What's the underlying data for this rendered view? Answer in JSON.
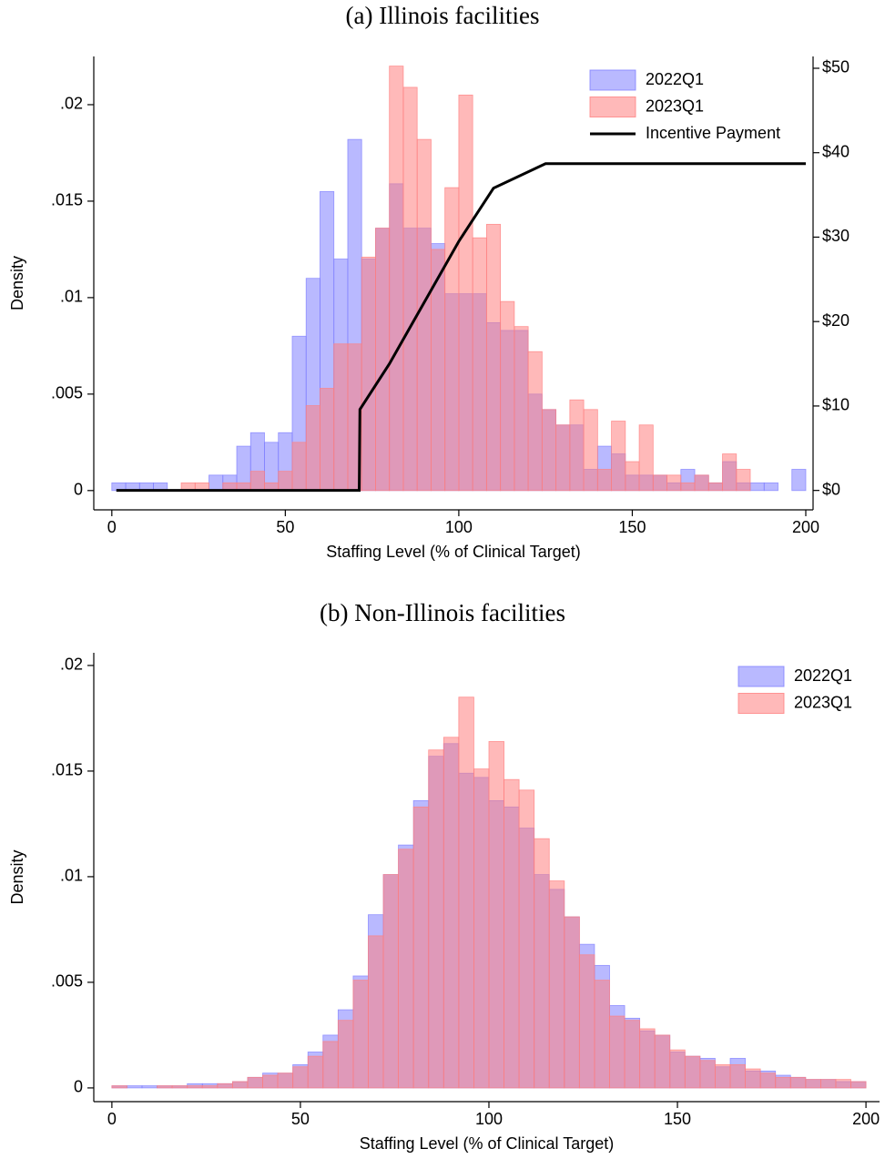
{
  "chart_data": [
    {
      "type": "histogram",
      "title": "(a) Illinois facilities",
      "x_label": "Staffing Level (% of Clinical Target)",
      "y_label": "Density",
      "bins": [
        0,
        4,
        8,
        12,
        16,
        20,
        24,
        28,
        32,
        36,
        40,
        44,
        48,
        52,
        56,
        60,
        64,
        68,
        72,
        76,
        80,
        84,
        88,
        92,
        96,
        100,
        104,
        108,
        112,
        116,
        120,
        124,
        128,
        132,
        136,
        140,
        144,
        148,
        152,
        156,
        160,
        164,
        168,
        172,
        176,
        180,
        184,
        188,
        192,
        196,
        200
      ],
      "series": [
        {
          "name": "2022Q1",
          "color": "#7f7fff",
          "values": [
            0.0004,
            0.0004,
            0.0004,
            0.0004,
            0,
            0,
            0,
            0.0008,
            0.0008,
            0.0023,
            0.003,
            0.0025,
            0.003,
            0.008,
            0.011,
            0.0155,
            0.012,
            0.0182,
            0.012,
            0.0136,
            0.0159,
            0.0136,
            0.0136,
            0.0128,
            0.0102,
            0.0102,
            0.0102,
            0.0087,
            0.0083,
            0.0083,
            0.005,
            0.0042,
            0.0034,
            0.0034,
            0.0011,
            0.0023,
            0.0019,
            0.0008,
            0.0008,
            0.0008,
            0.0004,
            0.0011,
            0.0008,
            0.0004,
            0.0015,
            0.0004,
            0.0004,
            0.0004,
            0,
            0.0011
          ]
        },
        {
          "name": "2023Q1",
          "color": "#ff7f7f",
          "values": [
            0,
            0,
            0,
            0,
            0,
            0.0004,
            0.0004,
            0,
            0.0004,
            0.0004,
            0.001,
            0.0004,
            0.001,
            0.0025,
            0.0044,
            0.0053,
            0.0076,
            0.0076,
            0.0121,
            0.0136,
            0.022,
            0.0209,
            0.0182,
            0.0125,
            0.0157,
            0.0205,
            0.0131,
            0.0138,
            0.0098,
            0.0085,
            0.0072,
            0.0042,
            0.0034,
            0.0047,
            0.0042,
            0.0011,
            0.0036,
            0.0015,
            0.0034,
            0.0008,
            0.0008,
            0.0004,
            0.0008,
            0.0004,
            0.0019,
            0.0011,
            0,
            0,
            0,
            0
          ]
        },
        {
          "name": "Incentive Payment",
          "type": "line",
          "color": "#000000",
          "axis": "y2",
          "x": [
            1.3,
            71.3,
            71.5,
            80,
            100,
            110,
            125,
            200
          ],
          "values": [
            0,
            0,
            9.6,
            15,
            29.5,
            35.8,
            38.7,
            38.7
          ]
        }
      ],
      "xlim": [
        -5.2,
        202.1
      ],
      "ylim": [
        -0.001,
        0.0225
      ],
      "y2lim": [
        -2.3,
        51.4
      ],
      "xticks": [
        0,
        50,
        100,
        150,
        200
      ],
      "yticks": [
        0,
        {
          "value": 0.005,
          "label": ".005"
        },
        {
          "value": 0.01,
          "label": ".01"
        },
        {
          "value": 0.015,
          "label": ".015"
        },
        {
          "value": 0.02,
          "label": ".02"
        }
      ],
      "y2ticks": [
        {
          "value": 0,
          "label": "$0"
        },
        {
          "value": 10,
          "label": "$10"
        },
        {
          "value": 20,
          "label": "$20"
        },
        {
          "value": 30,
          "label": "$30"
        },
        {
          "value": 40,
          "label": "$40"
        },
        {
          "value": 50,
          "label": "$50"
        }
      ],
      "legend": "top right",
      "grid": false
    },
    {
      "type": "histogram",
      "title": "(b) Non-Illinois facilities",
      "x_label": "Staffing Level (% of Clinical Target)",
      "y_label": "Density",
      "bins": [
        0,
        4,
        8,
        12,
        16,
        20,
        24,
        28,
        32,
        36,
        40,
        44,
        48,
        52,
        56,
        60,
        64,
        68,
        72,
        76,
        80,
        84,
        88,
        92,
        96,
        100,
        104,
        108,
        112,
        116,
        120,
        124,
        128,
        132,
        136,
        140,
        144,
        148,
        152,
        156,
        160,
        164,
        168,
        172,
        176,
        180,
        184,
        188,
        192,
        196,
        200
      ],
      "series": [
        {
          "name": "2022Q1",
          "color": "#7f7fff",
          "values": [
            0.0001,
            0.0001,
            0.0001,
            0.0001,
            0.0001,
            0.0002,
            0.0002,
            0.0002,
            0.0003,
            0.0005,
            0.0007,
            0.0007,
            0.0011,
            0.0017,
            0.0025,
            0.0037,
            0.0053,
            0.0082,
            0.0101,
            0.0115,
            0.0136,
            0.0157,
            0.0163,
            0.0149,
            0.0147,
            0.0136,
            0.0133,
            0.0123,
            0.0101,
            0.0094,
            0.0081,
            0.0068,
            0.0058,
            0.0039,
            0.0033,
            0.0027,
            0.0025,
            0.0017,
            0.0015,
            0.0014,
            0.001,
            0.0014,
            0.0008,
            0.0008,
            0.0006,
            0.0005,
            0.0004,
            0.0004,
            0.0003,
            0.0003
          ]
        },
        {
          "name": "2023Q1",
          "color": "#ff7f7f",
          "values": [
            0.0001,
            0,
            0,
            0.0001,
            0.0001,
            0.0001,
            0.0001,
            0.0002,
            0.0003,
            0.0005,
            0.0006,
            0.0007,
            0.001,
            0.0015,
            0.0022,
            0.0032,
            0.0051,
            0.0072,
            0.0101,
            0.0113,
            0.0133,
            0.016,
            0.0166,
            0.0185,
            0.0151,
            0.0164,
            0.0146,
            0.0141,
            0.0118,
            0.0098,
            0.0081,
            0.0063,
            0.0051,
            0.0034,
            0.0032,
            0.0028,
            0.0025,
            0.0018,
            0.0015,
            0.0013,
            0.0011,
            0.0011,
            0.0009,
            0.0007,
            0.0005,
            0.0005,
            0.0004,
            0.0004,
            0.0004,
            0.0003
          ]
        }
      ],
      "xlim": [
        -4.8,
        203.6
      ],
      "ylim": [
        -0.00065,
        0.0206
      ],
      "xticks": [
        0,
        50,
        100,
        150,
        200
      ],
      "yticks": [
        0,
        {
          "value": 0.005,
          "label": ".005"
        },
        {
          "value": 0.01,
          "label": ".01"
        },
        {
          "value": 0.015,
          "label": ".015"
        },
        {
          "value": 0.02,
          "label": ".02"
        }
      ],
      "legend": "top right",
      "grid": false
    }
  ]
}
